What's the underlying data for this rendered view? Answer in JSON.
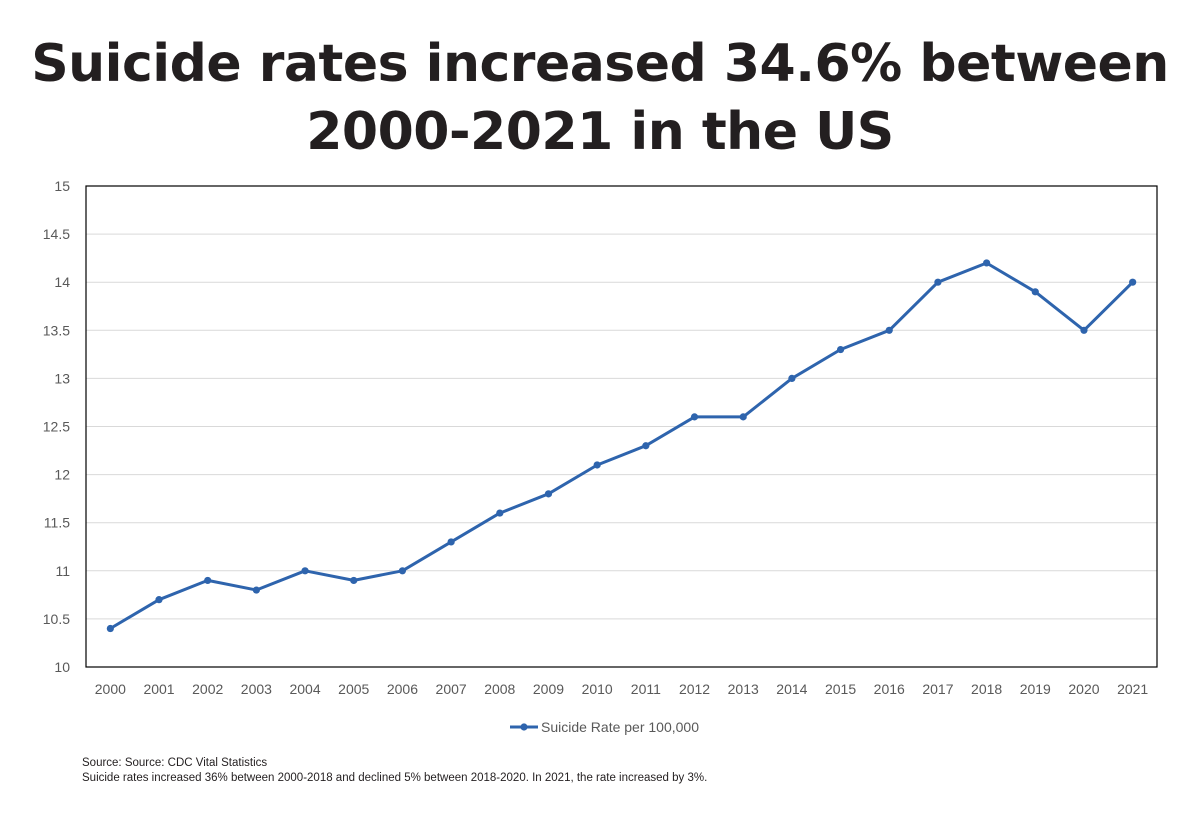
{
  "title_lines": [
    "Suicide rates increased 34.6% between",
    "2000-2021 in the US"
  ],
  "footnotes": {
    "source": "Source: Source: CDC Vital Statistics",
    "note": "Suicide rates increased 36% between 2000-2018 and declined 5% between 2018-2020. In 2021, the rate increased by 3%."
  },
  "colors": {
    "series": "#2e64ad",
    "gridline": "#d9d9d9",
    "frame": "#000000",
    "title": "#231f20"
  },
  "chart_data": {
    "type": "line",
    "title": "Suicide rates increased 34.6% between 2000-2021 in the US",
    "xlabel": "",
    "ylabel": "",
    "ylim": [
      10,
      15
    ],
    "y_ticks": [
      "10",
      "10.5",
      "11",
      "11.5",
      "12",
      "12.5",
      "13",
      "13.5",
      "14",
      "14.5",
      "15"
    ],
    "categories": [
      "2000",
      "2001",
      "2002",
      "2003",
      "2004",
      "2005",
      "2006",
      "2007",
      "2008",
      "2009",
      "2010",
      "2011",
      "2012",
      "2013",
      "2014",
      "2015",
      "2016",
      "2017",
      "2018",
      "2019",
      "2020",
      "2021"
    ],
    "series": [
      {
        "name": "Suicide Rate per 100,000",
        "values": [
          10.4,
          10.7,
          10.9,
          10.8,
          11.0,
          10.9,
          11.0,
          11.3,
          11.6,
          11.8,
          12.1,
          12.3,
          12.6,
          12.6,
          13.0,
          13.3,
          13.5,
          14.0,
          14.2,
          13.9,
          13.5,
          14.0
        ]
      }
    ],
    "grid": true,
    "legend": "bottom-center"
  }
}
